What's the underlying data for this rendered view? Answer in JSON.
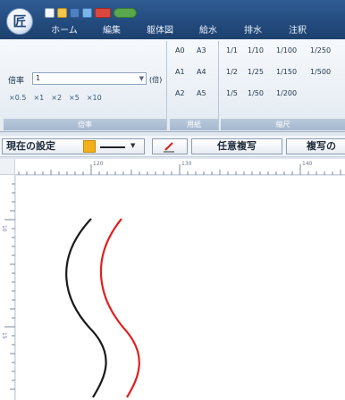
{
  "app": {
    "logo_glyph": "匠"
  },
  "tabs": [
    {
      "label": "ホーム"
    },
    {
      "label": "編集"
    },
    {
      "label": "躯体図"
    },
    {
      "label": "給水"
    },
    {
      "label": "排水"
    },
    {
      "label": "注釈"
    }
  ],
  "ribbon": {
    "scale": {
      "label": "倍率",
      "value": "1",
      "unit": "(倍)",
      "steps": [
        "×0.5",
        "×1",
        "×2",
        "×5",
        "×10"
      ],
      "caption": "倍率"
    },
    "paper": {
      "items": [
        "A0",
        "A3",
        "A1",
        "A4",
        "A2",
        "A5"
      ],
      "caption": "用紙"
    },
    "pitch": {
      "items": [
        "1/1",
        "1/10",
        "1/100",
        "1/250",
        "1/2",
        "1/25",
        "1/150",
        "1/500",
        "1/5",
        "1/50",
        "1/200"
      ],
      "caption": "縮尺"
    }
  },
  "toolbar": {
    "current_setting": "現在の設定",
    "swatch_color": "#f4b018",
    "pen_icon": "pen-icon",
    "arbitrary_copy": "任意複写",
    "copy_of": "複写の"
  },
  "rulers": {
    "top": [
      "120",
      "130",
      "140"
    ],
    "left": [
      "10",
      "15"
    ]
  },
  "drawing": {
    "curves": [
      {
        "color": "#1a1a1a"
      },
      {
        "color": "#e02020"
      }
    ]
  }
}
